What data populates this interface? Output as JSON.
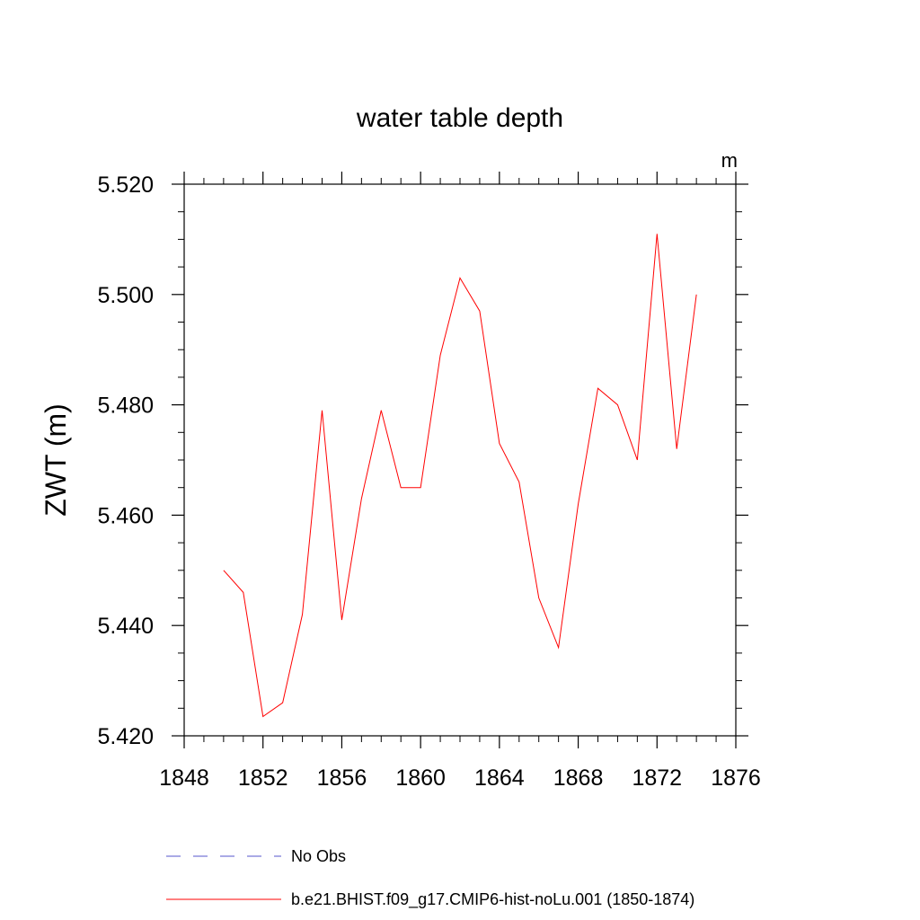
{
  "chart_data": {
    "type": "line",
    "title": "water table depth",
    "units_label": "m",
    "xlabel": "",
    "ylabel": "ZWT  (m)",
    "xlim": [
      1848,
      1876
    ],
    "ylim": [
      5.42,
      5.52
    ],
    "x_ticks": [
      "1848",
      "1852",
      "1856",
      "1860",
      "1864",
      "1868",
      "1872",
      "1876"
    ],
    "y_ticks": [
      "5.420",
      "5.440",
      "5.460",
      "5.480",
      "5.500",
      "5.520"
    ],
    "series": [
      {
        "name": "b.e21.BHIST.f09_g17.CMIP6-hist-noLu.001 (1850-1874)",
        "color": "#ff0000",
        "style": "solid",
        "x": [
          1850,
          1851,
          1852,
          1853,
          1854,
          1855,
          1856,
          1857,
          1858,
          1859,
          1860,
          1861,
          1862,
          1863,
          1864,
          1865,
          1866,
          1867,
          1868,
          1869,
          1870,
          1871,
          1872,
          1873,
          1874
        ],
        "y": [
          5.45,
          5.446,
          5.4235,
          5.426,
          5.442,
          5.479,
          5.441,
          5.463,
          5.479,
          5.465,
          5.465,
          5.489,
          5.503,
          5.497,
          5.473,
          5.466,
          5.445,
          5.436,
          5.462,
          5.483,
          5.48,
          5.47,
          5.511,
          5.472,
          5.5
        ]
      }
    ],
    "legend": [
      {
        "label": "No Obs",
        "color": "#5555cc",
        "style": "dashed"
      },
      {
        "label": "b.e21.BHIST.f09_g17.CMIP6-hist-noLu.001 (1850-1874)",
        "color": "#ff0000",
        "style": "solid"
      }
    ],
    "legend_position": "bottom",
    "grid": false
  }
}
